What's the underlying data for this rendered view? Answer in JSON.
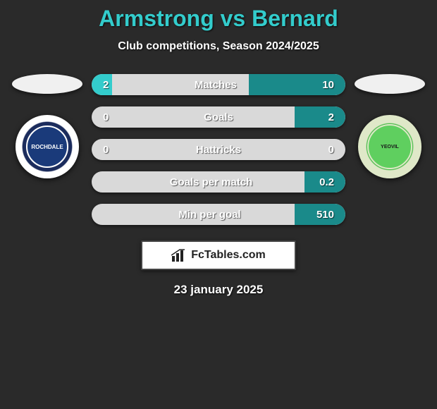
{
  "header": {
    "title": "Armstrong vs Bernard",
    "title_color": "#33cccc",
    "title_fontsize": 32,
    "subtitle": "Club competitions, Season 2024/2025",
    "subtitle_color": "#ffffff",
    "subtitle_fontsize": 16
  },
  "background_color": "#2a2a2a",
  "left_player": {
    "ellipse_color": "#f0f0f0",
    "badge_text": "ROCHDALE",
    "badge_outer_color": "#ffffff",
    "badge_inner_color": "#1a3a7a"
  },
  "right_player": {
    "ellipse_color": "#f0f0f0",
    "badge_text": "YEOVIL",
    "badge_outer_color": "#dfe8c8",
    "badge_inner_color": "#5fcf5f"
  },
  "stats": {
    "bar_bg": "#d9d9d9",
    "left_fill_color": "#33cccc",
    "right_fill_color": "#1a8a8a",
    "text_color": "#ffffff",
    "label_fontsize": 15,
    "rows": [
      {
        "left": "2",
        "label": "Matches",
        "right": "10",
        "left_pct": 8,
        "right_pct": 38
      },
      {
        "left": "0",
        "label": "Goals",
        "right": "2",
        "left_pct": 0,
        "right_pct": 20
      },
      {
        "left": "0",
        "label": "Hattricks",
        "right": "0",
        "left_pct": 0,
        "right_pct": 0
      },
      {
        "left": "",
        "label": "Goals per match",
        "right": "0.2",
        "left_pct": 0,
        "right_pct": 16
      },
      {
        "left": "",
        "label": "Min per goal",
        "right": "510",
        "left_pct": 0,
        "right_pct": 20
      }
    ]
  },
  "footer": {
    "brand_text": "FcTables.com",
    "brand_icon": "bar-chart",
    "date": "23 january 2025",
    "date_fontsize": 17,
    "date_color": "#ffffff"
  }
}
